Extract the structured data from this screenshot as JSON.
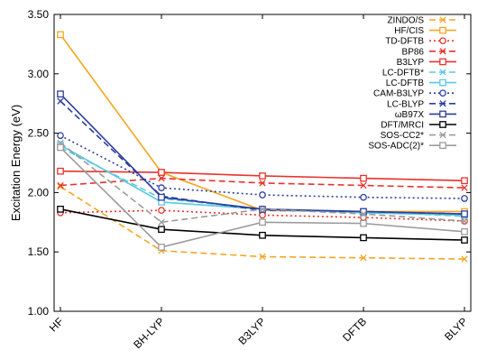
{
  "chart_data": {
    "type": "line",
    "title": "",
    "xlabel": "",
    "ylabel": "Excitation Energy (eV)",
    "categories": [
      "HF",
      "BH-LYP",
      "B3LYP",
      "DFTB",
      "BLYP"
    ],
    "ylim": [
      1.0,
      3.5
    ],
    "yticks": [
      "1.00",
      "1.50",
      "2.00",
      "2.50",
      "3.00",
      "3.50"
    ],
    "legend_position": "top-right",
    "grid": false,
    "series": [
      {
        "name": "ZINDO/S",
        "color": "#f5a623",
        "dash": "dashed",
        "marker": "x",
        "values": [
          2.05,
          1.51,
          1.46,
          1.45,
          1.44
        ]
      },
      {
        "name": "HF/CIS",
        "color": "#f5a623",
        "dash": "solid",
        "marker": "square-open",
        "values": [
          3.33,
          2.17,
          1.85,
          1.84,
          1.84
        ]
      },
      {
        "name": "TD-DFTB",
        "color": "#e8332e",
        "dash": "dotted",
        "marker": "circle-open",
        "values": [
          1.83,
          1.85,
          1.81,
          1.79,
          1.76
        ]
      },
      {
        "name": "BP86",
        "color": "#e8332e",
        "dash": "dashed",
        "marker": "x",
        "values": [
          2.06,
          2.12,
          2.08,
          2.06,
          2.04
        ]
      },
      {
        "name": "B3LYP",
        "color": "#e8332e",
        "dash": "solid",
        "marker": "square-open",
        "values": [
          2.18,
          2.17,
          2.14,
          2.12,
          2.1
        ]
      },
      {
        "name": "LC-DFTB*",
        "color": "#5bc8e0",
        "dash": "dashed",
        "marker": "x",
        "values": [
          2.38,
          1.95,
          1.86,
          1.84,
          1.8
        ]
      },
      {
        "name": "LC-DFTB",
        "color": "#5bc8e0",
        "dash": "solid",
        "marker": "square-open",
        "values": [
          2.4,
          1.92,
          1.86,
          1.83,
          1.81
        ]
      },
      {
        "name": "CAM-B3LYP",
        "color": "#2c3e9e",
        "dash": "dotted",
        "marker": "circle-open",
        "values": [
          2.48,
          2.04,
          1.98,
          1.96,
          1.95
        ]
      },
      {
        "name": "LC-BLYP",
        "color": "#2c3e9e",
        "dash": "dashed",
        "marker": "x",
        "values": [
          2.77,
          1.97,
          1.85,
          1.84,
          1.82
        ]
      },
      {
        "name": "ωB97X",
        "color": "#2c3e9e",
        "dash": "solid",
        "marker": "square-open",
        "values": [
          2.83,
          1.96,
          1.86,
          1.84,
          1.82
        ]
      },
      {
        "name": "DFT/MRCI",
        "color": "#000000",
        "dash": "solid",
        "marker": "square-open",
        "values": [
          1.86,
          1.69,
          1.64,
          1.62,
          1.6
        ]
      },
      {
        "name": "SOS-CC2*",
        "color": "#9b9b9b",
        "dash": "dashed",
        "marker": "x",
        "values": [
          2.42,
          1.75,
          1.86,
          1.82,
          1.76
        ]
      },
      {
        "name": "SOS-ADC(2)*",
        "color": "#9b9b9b",
        "dash": "solid",
        "marker": "square-open",
        "values": [
          2.38,
          1.54,
          1.75,
          1.74,
          1.67
        ]
      }
    ]
  }
}
